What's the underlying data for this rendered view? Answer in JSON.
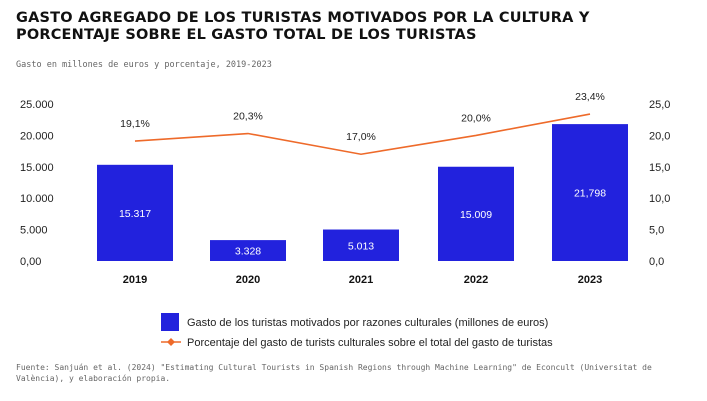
{
  "title": "GASTO AGREGADO DE LOS TURISTAS MOTIVADOS POR LA CULTURA Y PORCENTAJE SOBRE EL GASTO TOTAL DE LOS TURISTAS",
  "subtitle": "Gasto en millones de euros y porcentaje, 2019-2023",
  "source": "Fuente: Sanjuán et al. (2024) \"Estimating Cultural Tourists in Spanish Regions through Machine Learning\" de Econcult (Universitat de València), y elaboración propia.",
  "colors": {
    "bar": "#2222dd",
    "line": "#ee6a2a"
  },
  "chart_data": {
    "type": "bar",
    "categories": [
      "2019",
      "2020",
      "2021",
      "2022",
      "2023"
    ],
    "series": [
      {
        "name": "Gasto de los turistas motivados por razones culturales (millones de euros)",
        "type": "bar",
        "values": [
          15317,
          3328,
          5013,
          15009,
          21798
        ],
        "labels": [
          "15.317",
          "3.328",
          "5.013",
          "15.009",
          "21,798"
        ],
        "axis": "left"
      },
      {
        "name": "Porcentaje del gasto de turists culturales sobre el total del gasto de turistas",
        "type": "line",
        "values": [
          19.1,
          20.3,
          17.0,
          20.0,
          23.4
        ],
        "labels": [
          "19,1%",
          "20,3%",
          "17,0%",
          "20,0%",
          "23,4%"
        ],
        "axis": "right"
      }
    ],
    "y_left": {
      "ylim": [
        0,
        25000
      ],
      "ticks": [
        "0,00",
        "5.000",
        "10.000",
        "15.000",
        "20.000",
        "25.000"
      ],
      "tick_values": [
        0,
        5000,
        10000,
        15000,
        20000,
        25000
      ]
    },
    "y_right": {
      "ylim": [
        0,
        25
      ],
      "ticks": [
        "0,0",
        "5,0",
        "10,0",
        "15,0",
        "20,0",
        "25,0"
      ],
      "tick_values": [
        0,
        5,
        10,
        15,
        20,
        25
      ]
    },
    "grid": false,
    "legend": "bottom"
  }
}
